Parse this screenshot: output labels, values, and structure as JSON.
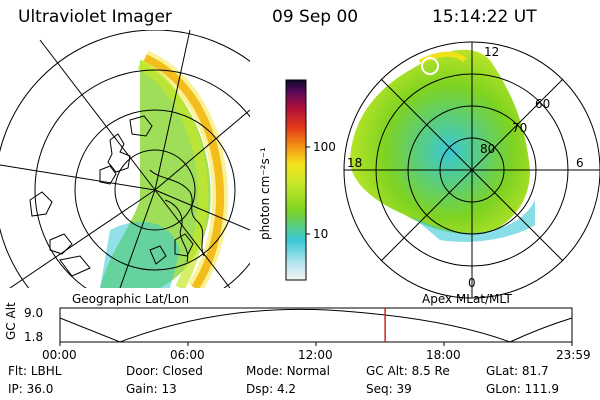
{
  "header": {
    "instrument": "Ultraviolet Imager",
    "date": "09 Sep 00",
    "time": "15:14:22 UT"
  },
  "left_panel": {
    "caption": "Geographic Lat/Lon"
  },
  "right_panel": {
    "caption": "Apex MLat/MLT",
    "mlt_labels": {
      "top": "12",
      "left": "18",
      "right": "6",
      "bottom": "0"
    },
    "lat_labels": [
      "60",
      "70",
      "80"
    ]
  },
  "colorbar": {
    "unit_label": "photon cm⁻²s⁻¹",
    "ticks": [
      "100",
      "10"
    ],
    "colors": [
      "#f4f4f4",
      "#b8e6f0",
      "#39c8d6",
      "#7ed321",
      "#c6e82a",
      "#f2e21c",
      "#f59a14",
      "#e53b1a",
      "#b0103a",
      "#5a0a5a",
      "#0a0a2a"
    ]
  },
  "timeline": {
    "axis_label": "GC Alt",
    "ymax": "9.0",
    "ymin": "1.8",
    "ticks": [
      "00:00",
      "06:00",
      "12:00",
      "18:00",
      "23:59"
    ],
    "current_time_fraction": 0.635,
    "marker_color": "#d62020"
  },
  "info": {
    "row1": [
      {
        "key": "Flt:",
        "value": "LBHL"
      },
      {
        "key": "Door:",
        "value": "Closed"
      },
      {
        "key": "Mode:",
        "value": "Normal"
      },
      {
        "key": "GC Alt:",
        "value": "8.5 Re"
      },
      {
        "key": "GLat:",
        "value": "81.7"
      }
    ],
    "row2": [
      {
        "key": "IP:",
        "value": "36.0"
      },
      {
        "key": "Gain:",
        "value": "13"
      },
      {
        "key": "Dsp:",
        "value": "4.2"
      },
      {
        "key": "Seq:",
        "value": "39"
      },
      {
        "key": "GLon:",
        "value": "111.9"
      }
    ]
  }
}
